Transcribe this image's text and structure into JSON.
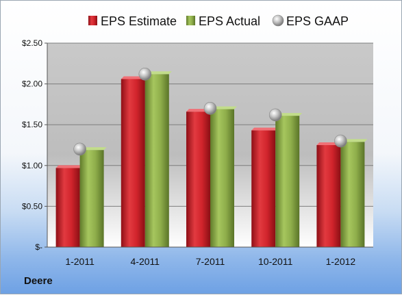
{
  "chart_data": {
    "type": "bar",
    "categories": [
      "1-2011",
      "4-2011",
      "7-2011",
      "10-2011",
      "1-2012"
    ],
    "series": [
      {
        "name": "EPS Estimate",
        "values": [
          0.97,
          2.06,
          1.66,
          1.43,
          1.25
        ],
        "color": "#c8202a"
      },
      {
        "name": "EPS Actual",
        "values": [
          1.19,
          2.12,
          1.69,
          1.61,
          1.29
        ],
        "color": "#8cab4a"
      },
      {
        "name": "EPS GAAP",
        "values": [
          1.2,
          2.12,
          1.7,
          1.62,
          1.3
        ],
        "color": "#b8b8b8",
        "marker": "sphere"
      }
    ],
    "y_ticks": [
      "$-",
      "$0.50",
      "$1.00",
      "$1.50",
      "$2.00",
      "$2.50"
    ],
    "ylim": [
      0,
      2.5
    ],
    "grid": true,
    "legend_position": "top"
  },
  "footer": {
    "company": "Deere"
  }
}
